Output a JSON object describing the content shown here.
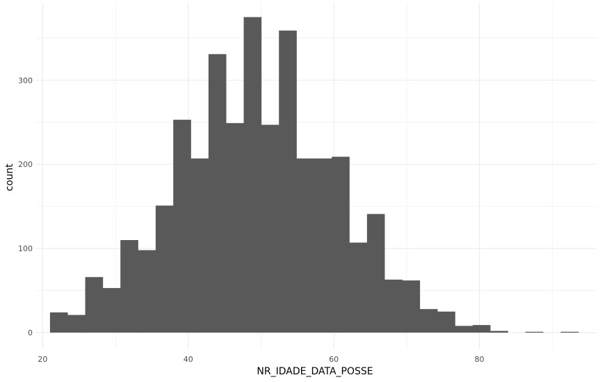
{
  "chart_data": {
    "type": "bar",
    "xlabel": "NR_IDADE_DATA_POSSE",
    "ylabel": "count",
    "xlim": [
      19.1,
      96.1
    ],
    "ylim": [
      -19,
      392
    ],
    "xticks": [
      20,
      40,
      60,
      80
    ],
    "yticks": [
      0,
      100,
      200,
      300
    ],
    "grid": true,
    "bin_start": 21,
    "bin_width": 2.42,
    "values": [
      24,
      21,
      66,
      53,
      110,
      98,
      151,
      253,
      207,
      331,
      249,
      375,
      247,
      359,
      207,
      207,
      209,
      107,
      141,
      63,
      62,
      28,
      25,
      8,
      9,
      2,
      0,
      1,
      0,
      1
    ],
    "bar_color": "#595959",
    "grid_color": "#ebebeb"
  }
}
